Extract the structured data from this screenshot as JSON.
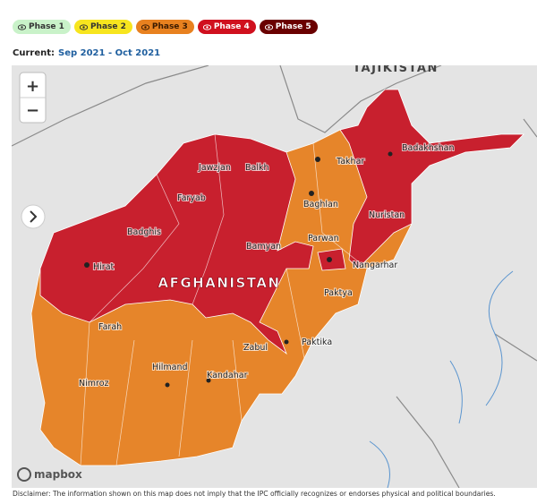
{
  "legend": [
    "Phase 1",
    "Phase 2",
    "Phase 3",
    "Phase 4",
    "Phase 5"
  ],
  "current": {
    "label": "Current:",
    "period": "Sep 2021 - Oct 2021"
  },
  "controls": {
    "zoom_in": "+",
    "zoom_out": "−"
  },
  "map": {
    "neighbor_label": "TAJIKISTAN",
    "country_label": "AFGHANISTAN",
    "labels": [
      "Jawzjan",
      "Balkh",
      "Faryab",
      "Badghis",
      "Hirat",
      "Bamyan",
      "Farah",
      "Hilmand",
      "Nimroz",
      "Kandahar",
      "Zabul",
      "Paktika",
      "Paktya",
      "Nangarhar",
      "Parwan",
      "Nuristan",
      "Baghlan",
      "Takhar",
      "Badakhshan"
    ],
    "attribution": "mapbox"
  },
  "disclaimer": "Disclaimer: The information shown on this map does not imply that the IPC officially recognizes or endorses physical and political boundaries."
}
